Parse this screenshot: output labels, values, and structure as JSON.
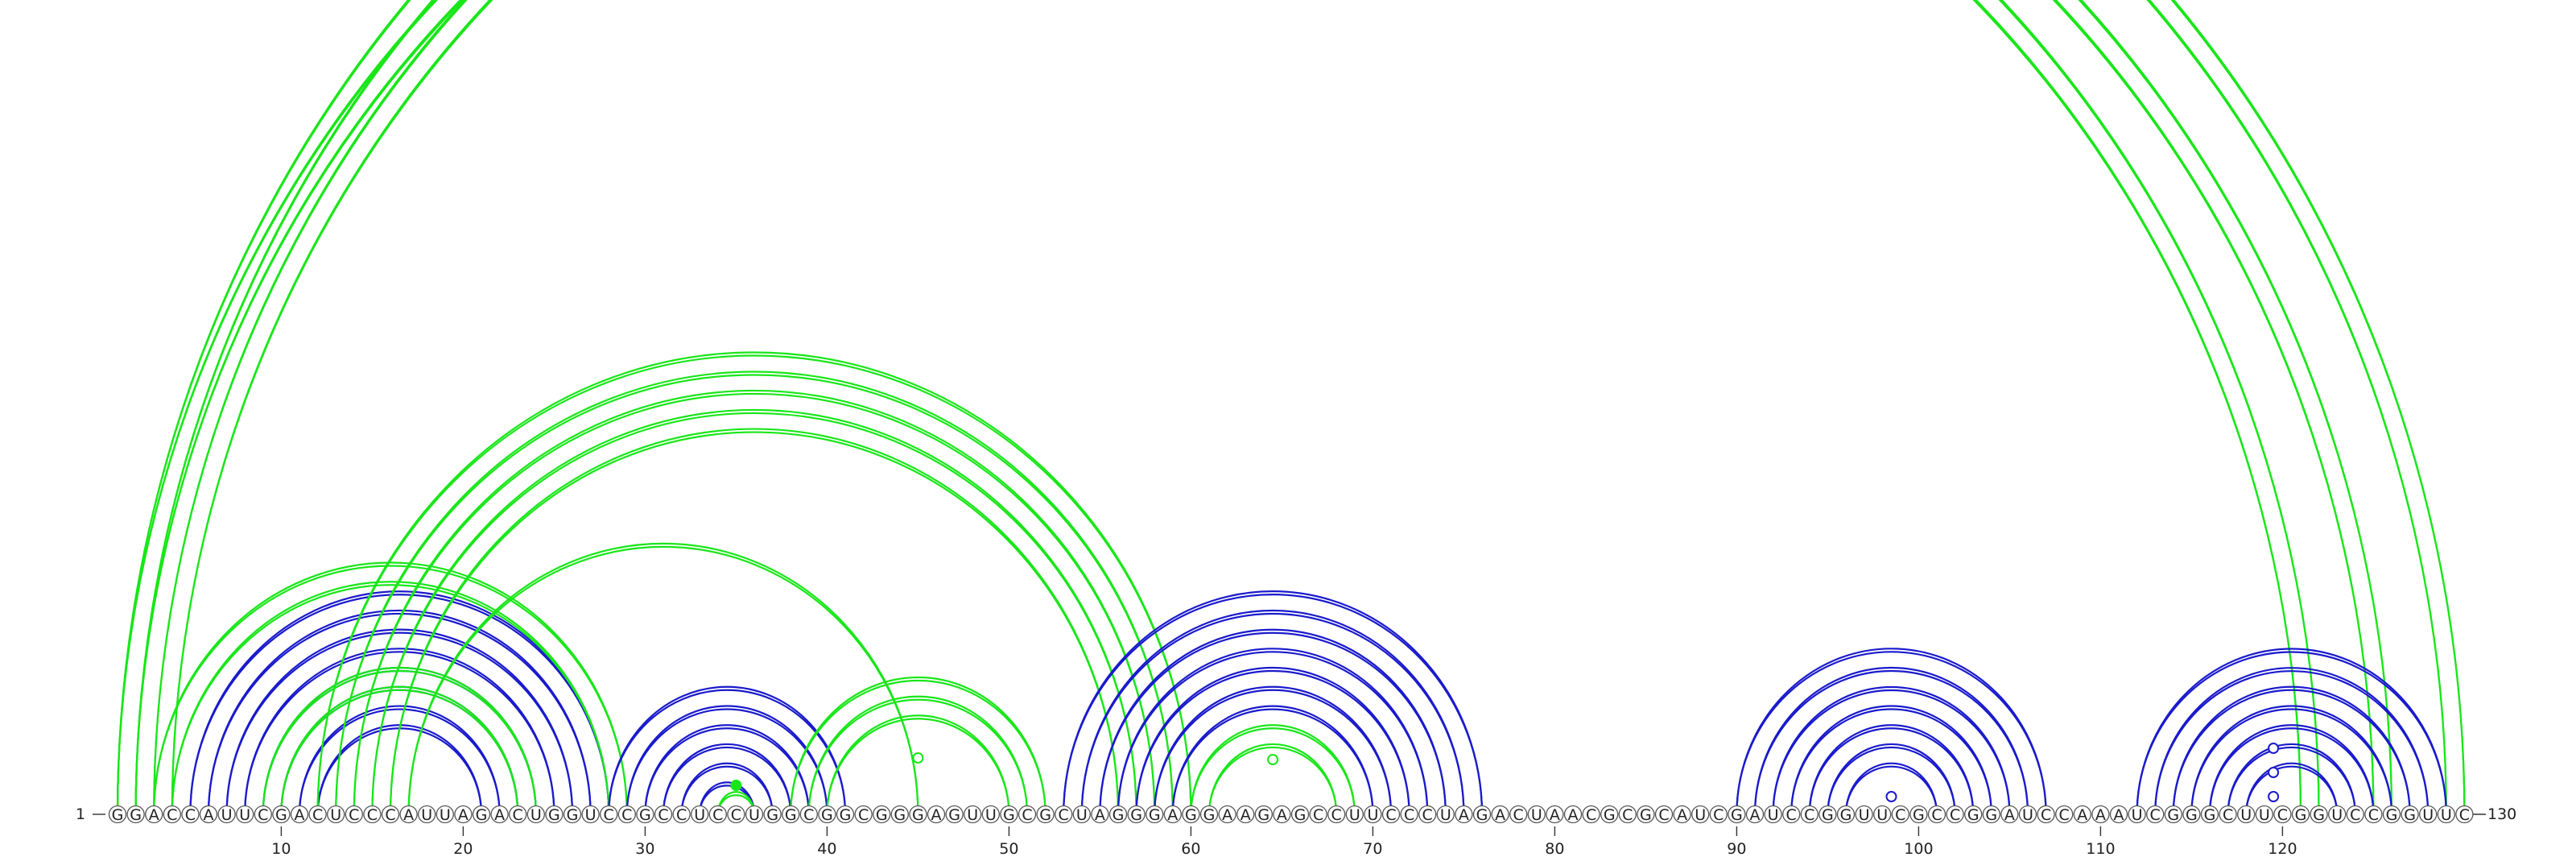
{
  "sequence": "GGACCAUUCGACUCCCAUUAGACUGGUCCGCCUCCUGGCGGCGGGAGUUGCGCUAGGGAGGAAGAGCCUUCCCUAGACUAACGCGCAUCGAUCCGGUUCGCCGGAUCCAAAUCGGGCUUCGGUCCGGUUC",
  "start_label": "1",
  "end_label": "130",
  "ticks": [
    "10",
    "20",
    "30",
    "40",
    "50",
    "60",
    "70",
    "80",
    "90",
    "100",
    "110",
    "120"
  ],
  "colors": {
    "green": "#19e619",
    "blue": "#1a1acc",
    "circle_stroke": "#555555",
    "text": "#222222"
  },
  "arc_groups": [
    {
      "color": "green",
      "pairs": [
        [
          1,
          122
        ],
        [
          2,
          121
        ],
        [
          3,
          126
        ],
        [
          4,
          125
        ]
      ]
    },
    {
      "color": "green",
      "pairs": [
        [
          1,
          130
        ],
        [
          2,
          129
        ]
      ]
    },
    {
      "color": "blue",
      "pairs": [
        [
          5,
          28
        ],
        [
          6,
          27
        ],
        [
          7,
          26
        ],
        [
          8,
          25
        ],
        [
          9,
          24
        ],
        [
          10,
          23
        ],
        [
          11,
          22
        ],
        [
          12,
          21
        ]
      ]
    },
    {
      "color": "green",
      "pairs": [
        [
          3,
          29
        ],
        [
          4,
          28
        ]
      ]
    },
    {
      "color": "green",
      "pairs": [
        [
          9,
          24
        ],
        [
          10,
          23
        ]
      ]
    },
    {
      "color": "green",
      "pairs": [
        [
          12,
          60
        ],
        [
          13,
          59
        ],
        [
          14,
          58
        ],
        [
          15,
          57
        ],
        [
          16,
          56
        ]
      ]
    },
    {
      "color": "green",
      "pairs": [
        [
          17,
          45
        ]
      ]
    },
    {
      "color": "blue",
      "pairs": [
        [
          28,
          41
        ],
        [
          29,
          40
        ],
        [
          30,
          39
        ],
        [
          31,
          38
        ],
        [
          32,
          37
        ],
        [
          33,
          36
        ]
      ]
    },
    {
      "color": "green",
      "pairs": [
        [
          34,
          36
        ]
      ]
    },
    {
      "color": "green",
      "pairs": [
        [
          38,
          52
        ],
        [
          39,
          51
        ],
        [
          40,
          50
        ]
      ]
    },
    {
      "color": "blue",
      "pairs": [
        [
          53,
          76
        ],
        [
          54,
          75
        ],
        [
          55,
          74
        ],
        [
          56,
          73
        ],
        [
          57,
          72
        ],
        [
          58,
          71
        ],
        [
          59,
          70
        ]
      ]
    },
    {
      "color": "green",
      "pairs": [
        [
          60,
          69
        ],
        [
          61,
          68
        ]
      ]
    },
    {
      "color": "blue",
      "pairs": [
        [
          90,
          107
        ],
        [
          91,
          106
        ],
        [
          92,
          105
        ],
        [
          93,
          104
        ],
        [
          94,
          103
        ],
        [
          95,
          102
        ],
        [
          96,
          101
        ]
      ]
    },
    {
      "color": "blue",
      "pairs": [
        [
          112,
          129
        ],
        [
          113,
          128
        ],
        [
          114,
          127
        ],
        [
          115,
          126
        ],
        [
          116,
          125
        ],
        [
          117,
          124
        ],
        [
          118,
          123
        ]
      ]
    }
  ],
  "markers": [
    {
      "pos": 35,
      "color": "green",
      "filled": true
    },
    {
      "pos": 45,
      "color": "green",
      "filled": false
    },
    {
      "pos": 64.5,
      "color": "green",
      "filled": false
    },
    {
      "pos": 98.5,
      "color": "blue",
      "filled": false
    },
    {
      "pos": 119.5,
      "color": "blue",
      "filled": false
    },
    {
      "pos": 119.5,
      "color": "blue",
      "filled": false
    },
    {
      "pos": 119.5,
      "color": "blue",
      "filled": false
    }
  ]
}
